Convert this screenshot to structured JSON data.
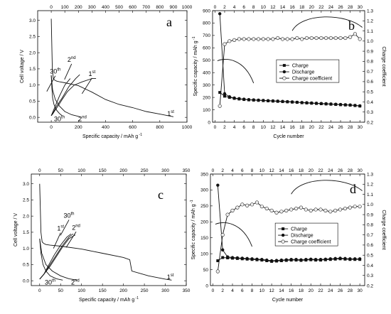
{
  "chart_data": [
    {
      "panel": "a",
      "type": "line",
      "xlabel": "Specific capacity / mAh g",
      "xlabel_sup": "-1",
      "ylabel": "Cell voltage / V",
      "xlim": [
        -100,
        1000
      ],
      "ylim": [
        -0.15,
        3.3
      ],
      "xticks": [
        0,
        200,
        400,
        600,
        800,
        1000
      ],
      "xticks_top": [
        0,
        100,
        200,
        300,
        400,
        500,
        600,
        700,
        800,
        900,
        1000
      ],
      "yticks": [
        0.0,
        0.5,
        1.0,
        1.5,
        2.0,
        2.5,
        3.0
      ],
      "series": [
        {
          "x": [
            0,
            8,
            15,
            25,
            40,
            60,
            100,
            200,
            300,
            400,
            500,
            600,
            700,
            800,
            900
          ],
          "y": [
            3.05,
            1.5,
            1.2,
            1.15,
            1.12,
            1.1,
            1.07,
            0.98,
            0.78,
            0.55,
            0.4,
            0.3,
            0.18,
            0.1,
            0.02
          ]
        },
        {
          "x": [
            0,
            5,
            10,
            20,
            40,
            60,
            80
          ],
          "y": [
            1.3,
            0.9,
            0.6,
            0.4,
            0.22,
            0.12,
            0.05
          ]
        },
        {
          "x": [
            0,
            10,
            30,
            60,
            100,
            150,
            200,
            220
          ],
          "y": [
            1.3,
            0.85,
            0.55,
            0.35,
            0.18,
            0.08,
            0.03,
            0.0
          ]
        },
        {
          "x": [
            0,
            10,
            25,
            50,
            80,
            120,
            170,
            230,
            300,
            330
          ],
          "y": [
            0.05,
            0.1,
            0.2,
            0.35,
            0.55,
            0.8,
            1.0,
            1.1,
            1.2,
            1.2
          ]
        },
        {
          "x": [
            0,
            15,
            40,
            80,
            130,
            180,
            210
          ],
          "y": [
            0.05,
            0.15,
            0.35,
            0.6,
            0.95,
            1.2,
            1.32
          ]
        },
        {
          "x": [
            0,
            10,
            30,
            60,
            100,
            140
          ],
          "y": [
            0.05,
            0.15,
            0.35,
            0.65,
            1.0,
            1.2
          ]
        }
      ],
      "annotations": [
        {
          "text": "1",
          "sup": "st",
          "x": 880,
          "y": 0.05
        },
        {
          "text": "2",
          "sup": "nd",
          "x": 230,
          "y": -0.12
        },
        {
          "text": "30",
          "sup": "th",
          "x": 60,
          "y": -0.12
        },
        {
          "text": "2",
          "sup": "nd",
          "x": 150,
          "y": 1.72
        },
        {
          "text": "30",
          "sup": "th",
          "x": 30,
          "y": 1.35
        },
        {
          "text": "1",
          "sup": "st",
          "x": 300,
          "y": 1.28
        }
      ]
    },
    {
      "panel": "b",
      "type": "line",
      "xlabel": "Cycle number",
      "ylabel": "Specific capacity / mAh g",
      "ylabel_sup": "-1",
      "y2label": "Charge coefficient",
      "xlim": [
        -0.5,
        31
      ],
      "ylim": [
        0,
        900
      ],
      "y2lim": [
        0.2,
        1.3
      ],
      "xticks": [
        0,
        2,
        4,
        6,
        8,
        10,
        12,
        14,
        16,
        18,
        20,
        22,
        24,
        26,
        28,
        30
      ],
      "xticks_top": [
        0,
        2,
        4,
        6,
        8,
        10,
        12,
        14,
        16,
        18,
        20,
        22,
        24,
        26,
        28,
        30
      ],
      "yticks": [
        0,
        100,
        200,
        300,
        400,
        500,
        600,
        700,
        800,
        900
      ],
      "y2ticks": [
        0.2,
        0.3,
        0.4,
        0.5,
        0.6,
        0.7,
        0.8,
        0.9,
        1.0,
        1.1,
        1.2,
        1.3
      ],
      "legend": [
        "Charge",
        "Discharge",
        "Charge coefficient"
      ],
      "series": [
        {
          "name": "Charge",
          "x": [
            1,
            2,
            3,
            4,
            5,
            6,
            7,
            8,
            9,
            10,
            11,
            12,
            13,
            14,
            15,
            16,
            17,
            18,
            19,
            20,
            21,
            22,
            23,
            24,
            25,
            26,
            27,
            28,
            29,
            30
          ],
          "values": [
            240,
            210,
            200,
            192,
            187,
            183,
            180,
            178,
            176,
            174,
            172,
            170,
            168,
            166,
            164,
            162,
            160,
            157,
            155,
            153,
            151,
            149,
            147,
            145,
            143,
            141,
            139,
            137,
            134,
            130
          ]
        },
        {
          "name": "Discharge",
          "x": [
            1,
            2,
            3,
            4,
            5,
            6,
            7,
            8,
            9,
            10,
            11,
            12,
            13,
            14,
            15,
            16,
            17,
            18,
            19,
            20,
            21,
            22,
            23,
            24,
            25,
            26,
            27,
            28,
            29,
            30
          ],
          "values": [
            875,
            230,
            205,
            195,
            190,
            186,
            182,
            180,
            178,
            176,
            174,
            172,
            170,
            168,
            166,
            164,
            161,
            159,
            157,
            155,
            153,
            151,
            149,
            147,
            145,
            143,
            141,
            139,
            136,
            132
          ]
        },
        {
          "name": "Charge coefficient",
          "x": [
            1,
            2,
            3,
            4,
            5,
            6,
            7,
            8,
            9,
            10,
            11,
            12,
            13,
            14,
            15,
            16,
            17,
            18,
            19,
            20,
            21,
            22,
            23,
            24,
            25,
            26,
            27,
            28,
            29,
            30
          ],
          "values": [
            0.36,
            0.97,
            1.0,
            1.01,
            1.02,
            1.02,
            1.02,
            1.02,
            1.02,
            1.02,
            1.02,
            1.02,
            1.03,
            1.02,
            1.02,
            1.02,
            1.03,
            1.02,
            1.03,
            1.03,
            1.03,
            1.03,
            1.03,
            1.03,
            1.03,
            1.03,
            1.03,
            1.04,
            1.07,
            1.02
          ]
        }
      ]
    },
    {
      "panel": "c",
      "type": "line",
      "xlabel": "Specific capacity / mAh g",
      "xlabel_sup": "-1",
      "ylabel": "Cell voltage / V",
      "xlim": [
        -20,
        350
      ],
      "ylim": [
        -0.15,
        3.3
      ],
      "xticks": [
        0,
        50,
        100,
        150,
        200,
        250,
        300,
        350
      ],
      "xticks_top": [
        0,
        50,
        100,
        150,
        200,
        250,
        300,
        350
      ],
      "yticks": [
        0.0,
        0.5,
        1.0,
        1.5,
        2.0,
        2.5,
        3.0
      ],
      "series": [
        {
          "x": [
            0,
            3,
            6,
            10,
            15,
            25,
            50,
            100,
            150,
            200,
            215,
            220,
            260,
            300,
            315
          ],
          "y": [
            3.0,
            1.5,
            1.2,
            1.15,
            1.12,
            1.1,
            1.07,
            0.98,
            0.85,
            0.72,
            0.65,
            0.3,
            0.15,
            0.05,
            0.02
          ]
        },
        {
          "x": [
            0,
            3,
            8,
            15,
            25,
            40,
            55
          ],
          "y": [
            1.3,
            0.85,
            0.5,
            0.3,
            0.15,
            0.06,
            0.02
          ]
        },
        {
          "x": [
            0,
            5,
            15,
            30,
            50,
            70,
            90
          ],
          "y": [
            1.3,
            0.85,
            0.5,
            0.3,
            0.15,
            0.06,
            0.02
          ]
        },
        {
          "x": [
            0,
            10,
            25,
            40,
            55,
            70,
            85
          ],
          "y": [
            0.05,
            0.2,
            0.45,
            0.75,
            1.05,
            1.3,
            1.42
          ]
        },
        {
          "x": [
            0,
            10,
            25,
            40,
            55,
            70,
            80
          ],
          "y": [
            0.05,
            0.2,
            0.5,
            0.8,
            1.1,
            1.35,
            1.45
          ]
        },
        {
          "x": [
            0,
            10,
            20,
            35,
            50,
            65,
            75
          ],
          "y": [
            0.05,
            0.2,
            0.45,
            0.8,
            1.1,
            1.35,
            1.45
          ]
        }
      ],
      "annotations": [
        {
          "text": "1",
          "sup": "st",
          "x": 312,
          "y": 0.05
        },
        {
          "text": "2",
          "sup": "nd",
          "x": 85,
          "y": -0.12
        },
        {
          "text": "30",
          "sup": "th",
          "x": 25,
          "y": -0.12
        },
        {
          "text": "1",
          "sup": "st",
          "x": 50,
          "y": 1.55
        },
        {
          "text": "30",
          "sup": "th",
          "x": 70,
          "y": 1.95
        },
        {
          "text": "2",
          "sup": "nd",
          "x": 87,
          "y": 1.58
        }
      ]
    },
    {
      "panel": "d",
      "type": "line",
      "xlabel": "Cycle number",
      "ylabel": "Specific capacity / mAh g",
      "ylabel_sup": "-1",
      "y2label": "Charge coefficient",
      "xlim": [
        -0.5,
        31
      ],
      "ylim": [
        0,
        350
      ],
      "y2lim": [
        0.2,
        1.3
      ],
      "xticks": [
        0,
        2,
        4,
        6,
        8,
        10,
        12,
        14,
        16,
        18,
        20,
        22,
        24,
        26,
        28,
        30
      ],
      "xticks_top": [
        0,
        2,
        4,
        6,
        8,
        10,
        12,
        14,
        16,
        18,
        20,
        22,
        24,
        26,
        28,
        30
      ],
      "yticks": [
        0,
        50,
        100,
        150,
        200,
        250,
        300,
        350
      ],
      "y2ticks": [
        0.2,
        0.3,
        0.4,
        0.5,
        0.6,
        0.7,
        0.8,
        0.9,
        1.0,
        1.1,
        1.2,
        1.3
      ],
      "legend": [
        "Charge",
        "Discharge",
        "Charge coefficient"
      ],
      "series": [
        {
          "name": "Charge",
          "x": [
            1,
            2,
            3,
            4,
            5,
            6,
            7,
            8,
            9,
            10,
            11,
            12,
            13,
            14,
            15,
            16,
            17,
            18,
            19,
            20,
            21,
            22,
            23,
            24,
            25,
            26,
            27,
            28,
            29,
            30
          ],
          "values": [
            78,
            88,
            87,
            86,
            85,
            84,
            83,
            82,
            81,
            80,
            78,
            76,
            77,
            78,
            79,
            80,
            80,
            79,
            80,
            81,
            80,
            80,
            81,
            82,
            83,
            84,
            83,
            82,
            82,
            82
          ]
        },
        {
          "name": "Discharge",
          "x": [
            1,
            2,
            3,
            4,
            5,
            6,
            7,
            8,
            9,
            10,
            11,
            12,
            13,
            14,
            15,
            16,
            17,
            18,
            19,
            20,
            21,
            22,
            23,
            24,
            25,
            26,
            27,
            28,
            29,
            30
          ],
          "values": [
            315,
            112,
            90,
            88,
            87,
            86,
            85,
            84,
            83,
            82,
            80,
            78,
            79,
            80,
            81,
            82,
            82,
            81,
            82,
            83,
            82,
            82,
            83,
            84,
            85,
            86,
            85,
            84,
            84,
            84
          ]
        },
        {
          "name": "Charge coefficient",
          "x": [
            1,
            2,
            3,
            4,
            5,
            6,
            7,
            8,
            9,
            10,
            11,
            12,
            13,
            14,
            15,
            16,
            17,
            18,
            19,
            20,
            21,
            22,
            23,
            24,
            25,
            26,
            27,
            28,
            29,
            30
          ],
          "values": [
            0.34,
            0.7,
            0.9,
            0.94,
            0.97,
            1.0,
            0.99,
            1.0,
            1.02,
            0.98,
            0.96,
            0.94,
            0.92,
            0.93,
            0.94,
            0.95,
            0.96,
            0.97,
            0.95,
            0.94,
            0.95,
            0.95,
            0.94,
            0.93,
            0.94,
            0.95,
            0.96,
            0.97,
            0.98,
            0.98
          ]
        }
      ]
    }
  ]
}
